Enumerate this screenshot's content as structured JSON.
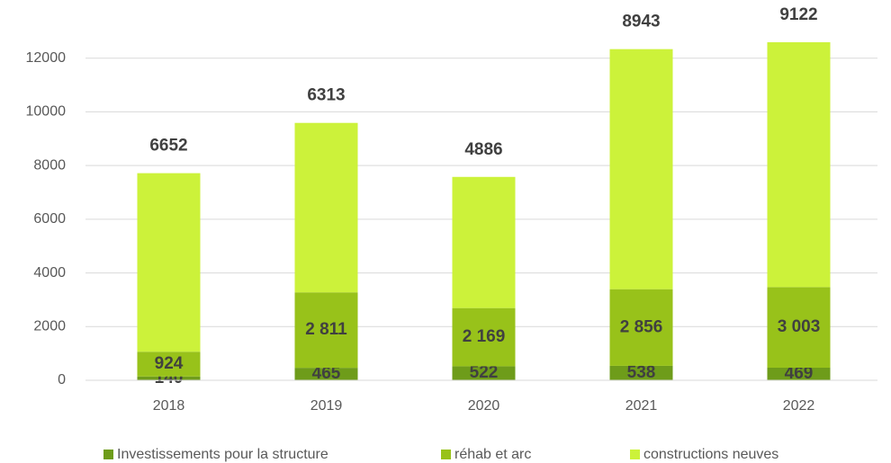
{
  "chart_data": {
    "type": "stacked_bar",
    "categories": [
      "2018",
      "2019",
      "2020",
      "2021",
      "2022"
    ],
    "series": [
      {
        "name": "Investissements pour la structure",
        "color": "#6e9c1a",
        "values": [
          140,
          465,
          522,
          538,
          469
        ]
      },
      {
        "name": "réhab et arc",
        "color": "#98c21a",
        "values": [
          924,
          2811,
          2169,
          2856,
          3003
        ],
        "value_labels": [
          "924",
          "2 811",
          "2 169",
          "2 856",
          "3 003"
        ]
      },
      {
        "name": "constructions neuves",
        "color": "#ccf23a",
        "values": [
          6652,
          6313,
          4886,
          8943,
          9122
        ]
      }
    ],
    "ylim": [
      0,
      14000
    ],
    "yticks": [
      0,
      2000,
      4000,
      6000,
      8000,
      10000,
      12000
    ],
    "grid": true,
    "legend": "bottom"
  }
}
